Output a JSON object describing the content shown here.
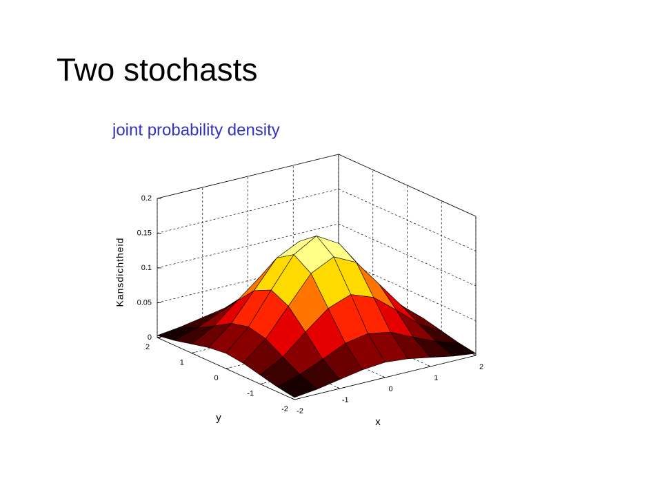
{
  "title": "Two stochasts",
  "chart_data": {
    "type": "surface",
    "title": "joint probability density",
    "xlabel": "x",
    "ylabel": "y",
    "zlabel": "Kansdichtheid",
    "x": [
      -2,
      -1.5,
      -1,
      -0.5,
      0,
      0.5,
      1,
      1.5,
      2
    ],
    "y": [
      -2,
      -1.5,
      -1,
      -0.5,
      0,
      0.5,
      1,
      1.5,
      2
    ],
    "z": [
      [
        0.003,
        0.007,
        0.013,
        0.019,
        0.022,
        0.019,
        0.013,
        0.007,
        0.003
      ],
      [
        0.007,
        0.017,
        0.031,
        0.046,
        0.052,
        0.046,
        0.031,
        0.017,
        0.007
      ],
      [
        0.013,
        0.031,
        0.059,
        0.085,
        0.097,
        0.085,
        0.059,
        0.031,
        0.013
      ],
      [
        0.019,
        0.046,
        0.085,
        0.124,
        0.14,
        0.124,
        0.085,
        0.046,
        0.019
      ],
      [
        0.022,
        0.052,
        0.097,
        0.14,
        0.159,
        0.14,
        0.097,
        0.052,
        0.022
      ],
      [
        0.019,
        0.046,
        0.085,
        0.124,
        0.14,
        0.124,
        0.085,
        0.046,
        0.019
      ],
      [
        0.013,
        0.031,
        0.059,
        0.085,
        0.097,
        0.085,
        0.059,
        0.031,
        0.013
      ],
      [
        0.007,
        0.017,
        0.031,
        0.046,
        0.052,
        0.046,
        0.031,
        0.017,
        0.007
      ],
      [
        0.003,
        0.007,
        0.013,
        0.019,
        0.022,
        0.019,
        0.013,
        0.007,
        0.003
      ]
    ],
    "xlim": [
      -2,
      2
    ],
    "ylim": [
      -2,
      2
    ],
    "zlim": [
      0,
      0.2
    ],
    "xticks": [
      -2,
      -1,
      0,
      1,
      2
    ],
    "yticks": [
      -2,
      -1,
      0,
      1,
      2
    ],
    "zticks": [
      0,
      0.05,
      0.1,
      0.15,
      0.2
    ],
    "colormap": "hot",
    "grid": true
  }
}
